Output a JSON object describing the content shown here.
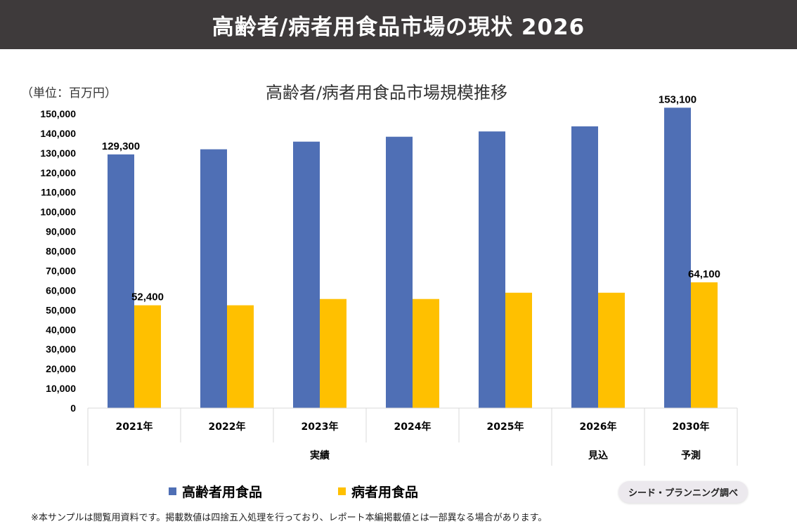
{
  "header": {
    "title": "高齢者/病者用食品市場の現状 2026"
  },
  "chart_data": {
    "type": "bar",
    "title": "高齢者/病者用食品市場規模推移",
    "unit_label": "（単位：百万円）",
    "categories": [
      "2021年",
      "2022年",
      "2023年",
      "2024年",
      "2025年",
      "2026年",
      "2030年"
    ],
    "groups": [
      {
        "label": "実績",
        "span": [
          0,
          4
        ]
      },
      {
        "label": "見込",
        "span": [
          5,
          5
        ]
      },
      {
        "label": "予測",
        "span": [
          6,
          6
        ]
      }
    ],
    "series": [
      {
        "name": "高齢者用食品",
        "color": "#4f6fb5",
        "values": [
          129300,
          131900,
          135800,
          138300,
          141000,
          143600,
          153100
        ]
      },
      {
        "name": "病者用食品",
        "color": "#ffc000",
        "values": [
          52400,
          52400,
          55600,
          55600,
          58800,
          58800,
          64100
        ]
      }
    ],
    "data_labels": [
      {
        "series": 0,
        "index": 0,
        "text": "129,300"
      },
      {
        "series": 1,
        "index": 0,
        "text": "52,400"
      },
      {
        "series": 0,
        "index": 6,
        "text": "153,100"
      },
      {
        "series": 1,
        "index": 6,
        "text": "64,100"
      }
    ],
    "ylim": [
      0,
      150000
    ],
    "y_ticks": [
      "0",
      "10,000",
      "20,000",
      "30,000",
      "40,000",
      "50,000",
      "60,000",
      "70,000",
      "80,000",
      "90,000",
      "100,000",
      "110,000",
      "120,000",
      "130,000",
      "140,000",
      "150,000"
    ],
    "y_tick_step": 10000,
    "grid": false,
    "legend_position": "bottom"
  },
  "source": "シード・プランニング調べ",
  "footnote": "※本サンプルは閲覧用資料です。掲載数値は四捨五入処理を行っており、レポート本編掲載値とは一部異なる場合があります。"
}
